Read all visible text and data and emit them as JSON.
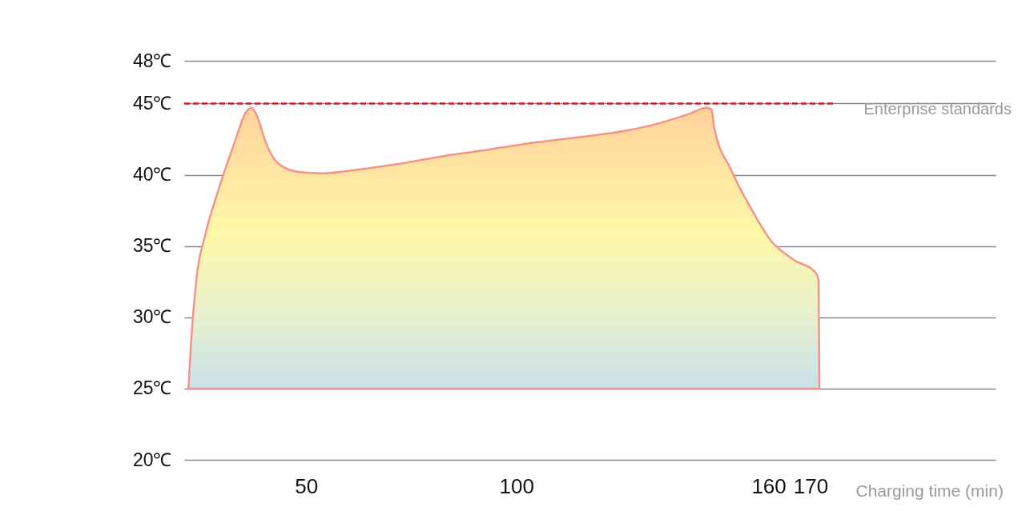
{
  "chart_data": {
    "type": "area",
    "xlabel": "Charging time (min)",
    "x": [
      22.0,
      22.6,
      23.7,
      26.2,
      29.0,
      32.9,
      35.7,
      37.0,
      38.2,
      40.5,
      43.3,
      48.1,
      53.8,
      63.3,
      72.9,
      82.4,
      91.9,
      100.5,
      111.0,
      126.2,
      133.8,
      141.4,
      145.2,
      146.4,
      147.1,
      151.0,
      155.7,
      160.5,
      166.2,
      171.0,
      171.9,
      172.1
    ],
    "series": [
      {
        "color": "#f4938a",
        "values": [
          25,
          28.1,
          32.1,
          36.0,
          38.8,
          42.2,
          44.4,
          44.7,
          44.2,
          42.2,
          40.8,
          40.2,
          40.1,
          40.4,
          40.8,
          41.3,
          41.7,
          42.1,
          42.5,
          43.1,
          43.6,
          44.3,
          44.7,
          44.6,
          43.3,
          40.4,
          37.7,
          35.4,
          34.0,
          33.2,
          32.6,
          25
        ]
      }
    ],
    "xlim": [
      21,
      214
    ],
    "xticks": [
      50,
      100,
      160,
      170
    ],
    "ylim": [
      20,
      48
    ],
    "yticks": [
      {
        "value": 20,
        "label": "20℃"
      },
      {
        "value": 25,
        "label": "25℃"
      },
      {
        "value": 30,
        "label": "30℃"
      },
      {
        "value": 35,
        "label": "35℃"
      },
      {
        "value": 40,
        "label": "40℃"
      },
      {
        "value": 45,
        "label": "45℃"
      },
      {
        "value": 48,
        "label": "48℃"
      }
    ],
    "ref_lines": [
      {
        "axis": "y",
        "value": 45,
        "label": "Enterprise standards",
        "color": "#d0202e",
        "line_style": "dashed"
      }
    ],
    "grid": "y"
  }
}
